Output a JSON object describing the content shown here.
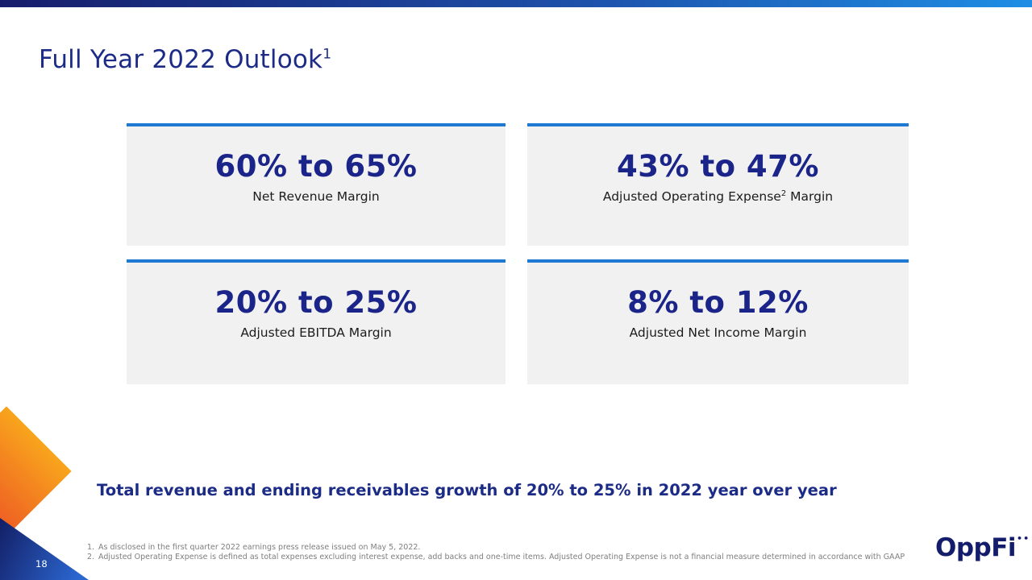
{
  "colors": {
    "brand_navy": "#1b2488",
    "accent_blue": "#1e79d2",
    "card_background": "#f1f1f2",
    "footnote_gray": "#7e7e7e",
    "orange_accent": "#ee5b24",
    "top_bar_gradient_start": "#171d6a",
    "top_bar_gradient_end": "#1e8ee4"
  },
  "slide": {
    "title": "Full Year 2022 Outlook",
    "title_sup": "1",
    "cards": [
      {
        "value": "60% to 65%",
        "label_pre": "Net Revenue Margin",
        "label_sup": "",
        "label_post": ""
      },
      {
        "value": "43% to 47%",
        "label_pre": "Adjusted Operating Expense",
        "label_sup": "2",
        "label_post": " Margin"
      },
      {
        "value": "20% to 25%",
        "label_pre": "Adjusted EBITDA Margin",
        "label_sup": "",
        "label_post": ""
      },
      {
        "value": "8% to 12%",
        "label_pre": "Adjusted Net Income Margin",
        "label_sup": "",
        "label_post": ""
      }
    ],
    "highlight": "Total revenue and ending receivables growth of 20% to 25% in 2022 year over year",
    "footnotes": [
      {
        "num": "1.",
        "text": "As disclosed in the first quarter 2022 earnings press release issued on May 5, 2022."
      },
      {
        "num": "2.",
        "text": "Adjusted Operating Expense is defined as total expenses excluding interest expense, add backs and one-time items. Adjusted Operating Expense is not a financial measure determined in accordance with GAAP"
      }
    ],
    "page_number": "18",
    "logo_text": "OppFi",
    "logo_dots": "••"
  }
}
